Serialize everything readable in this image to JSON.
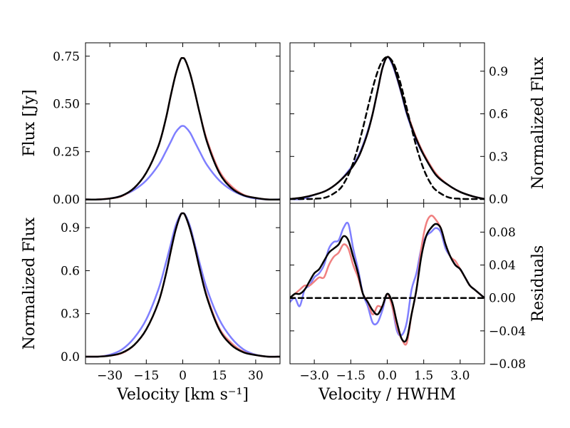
{
  "chart_data": [
    {
      "type": "line",
      "id": "top-left",
      "title": "",
      "xlabel": "",
      "ylabel": "Flux [Jy]",
      "xlim": [
        -40,
        40
      ],
      "ylim": [
        -0.02,
        0.82
      ],
      "xticks": [
        -30,
        -15,
        0,
        15,
        30
      ],
      "xtick_labels": [
        "",
        "",
        "",
        "",
        ""
      ],
      "yticks": [
        0.0,
        0.25,
        0.5,
        0.75
      ],
      "ytick_labels": [
        "0.00",
        "0.25",
        "0.50",
        "0.75"
      ],
      "ytick_side": "left",
      "series": [
        {
          "name": "blue profile",
          "color": "#7f7fff",
          "x": [
            -40,
            -35,
            -30,
            -25,
            -20,
            -15,
            -10,
            -7,
            -5,
            -3,
            -1,
            0,
            1,
            3,
            5,
            7,
            10,
            15,
            20,
            25,
            30,
            35,
            40
          ],
          "y": [
            0.0,
            0.0,
            0.005,
            0.02,
            0.05,
            0.1,
            0.18,
            0.25,
            0.3,
            0.35,
            0.38,
            0.385,
            0.38,
            0.35,
            0.3,
            0.25,
            0.18,
            0.1,
            0.05,
            0.02,
            0.005,
            0.0,
            0.0
          ]
        },
        {
          "name": "red profile",
          "color": "#f08080",
          "x": [
            -40,
            -35,
            -30,
            -25,
            -20,
            -15,
            -10,
            -7,
            -5,
            -3,
            -1,
            0,
            1,
            3,
            5,
            7,
            10,
            15,
            20,
            25,
            30,
            35,
            40
          ],
          "y": [
            0.0,
            0.0,
            0.005,
            0.018,
            0.06,
            0.14,
            0.28,
            0.42,
            0.54,
            0.65,
            0.73,
            0.74,
            0.73,
            0.66,
            0.56,
            0.45,
            0.31,
            0.15,
            0.07,
            0.025,
            0.008,
            0.0,
            0.0
          ]
        },
        {
          "name": "black profile",
          "color": "#000000",
          "x": [
            -40,
            -35,
            -30,
            -25,
            -20,
            -15,
            -10,
            -7,
            -5,
            -3,
            -1,
            0,
            1,
            3,
            5,
            7,
            10,
            15,
            20,
            25,
            30,
            35,
            40
          ],
          "y": [
            0.0,
            0.0,
            0.005,
            0.02,
            0.06,
            0.14,
            0.28,
            0.42,
            0.54,
            0.65,
            0.73,
            0.74,
            0.73,
            0.66,
            0.56,
            0.45,
            0.3,
            0.14,
            0.06,
            0.022,
            0.008,
            0.0,
            0.0
          ]
        }
      ]
    },
    {
      "type": "line",
      "id": "top-right",
      "title": "",
      "xlabel": "",
      "ylabel": "Normalized Flux",
      "xlim": [
        -4.0,
        4.0
      ],
      "ylim": [
        -0.03,
        1.1
      ],
      "xticks": [
        -3.0,
        -1.5,
        0.0,
        1.5,
        3.0
      ],
      "xtick_labels": [
        "",
        "",
        "",
        "",
        ""
      ],
      "yticks": [
        0.0,
        0.3,
        0.6,
        0.9
      ],
      "ytick_labels": [
        "0.0",
        "0.3",
        "0.6",
        "0.9"
      ],
      "ytick_side": "right",
      "series": [
        {
          "name": "blue profile",
          "color": "#7f7fff",
          "x": [
            -4,
            -3.5,
            -3,
            -2.5,
            -2,
            -1.5,
            -1.2,
            -1,
            -0.8,
            -0.6,
            -0.4,
            -0.2,
            0,
            0.2,
            0.4,
            0.6,
            0.8,
            1,
            1.2,
            1.5,
            2,
            2.5,
            3,
            3.5,
            4
          ],
          "y": [
            0.0,
            0.0,
            0.03,
            0.06,
            0.12,
            0.22,
            0.3,
            0.38,
            0.48,
            0.6,
            0.76,
            0.92,
            1.0,
            0.95,
            0.85,
            0.73,
            0.6,
            0.5,
            0.41,
            0.31,
            0.17,
            0.1,
            0.05,
            0.02,
            0.0
          ]
        },
        {
          "name": "red profile",
          "color": "#f08080",
          "x": [
            -4,
            -3.5,
            -3,
            -2.5,
            -2,
            -1.5,
            -1.2,
            -1,
            -0.8,
            -0.6,
            -0.4,
            -0.2,
            0,
            0.2,
            0.4,
            0.6,
            0.8,
            1,
            1.2,
            1.5,
            2,
            2.5,
            3,
            3.5,
            4
          ],
          "y": [
            0.0,
            0.01,
            0.03,
            0.06,
            0.12,
            0.21,
            0.29,
            0.37,
            0.47,
            0.6,
            0.76,
            0.92,
            1.0,
            0.96,
            0.86,
            0.74,
            0.62,
            0.52,
            0.43,
            0.32,
            0.18,
            0.1,
            0.05,
            0.02,
            0.0
          ]
        },
        {
          "name": "black profile",
          "color": "#000000",
          "x": [
            -4,
            -3.5,
            -3,
            -2.5,
            -2,
            -1.5,
            -1.2,
            -1,
            -0.8,
            -0.6,
            -0.4,
            -0.2,
            0,
            0.2,
            0.4,
            0.6,
            0.8,
            1,
            1.2,
            1.5,
            2,
            2.5,
            3,
            3.5,
            4
          ],
          "y": [
            0.0,
            0.01,
            0.03,
            0.06,
            0.12,
            0.21,
            0.29,
            0.37,
            0.47,
            0.6,
            0.76,
            0.92,
            1.0,
            0.96,
            0.86,
            0.74,
            0.61,
            0.51,
            0.42,
            0.31,
            0.17,
            0.1,
            0.05,
            0.02,
            0.0
          ]
        },
        {
          "name": "gaussian fit (dashed)",
          "color": "#000000",
          "dashed": true,
          "x": [
            -4,
            -3.5,
            -3,
            -2.5,
            -2,
            -1.75,
            -1.5,
            -1.25,
            -1,
            -0.75,
            -0.5,
            -0.25,
            0,
            0.25,
            0.5,
            0.75,
            1,
            1.25,
            1.5,
            1.75,
            2,
            2.5,
            3,
            3.5,
            4
          ],
          "y": [
            0.0,
            0.0,
            0.002,
            0.013,
            0.063,
            0.12,
            0.21,
            0.338,
            0.5,
            0.677,
            0.841,
            0.958,
            1.0,
            0.958,
            0.841,
            0.677,
            0.5,
            0.338,
            0.21,
            0.12,
            0.063,
            0.013,
            0.002,
            0.0,
            0.0
          ]
        }
      ]
    },
    {
      "type": "line",
      "id": "bottom-left",
      "title": "",
      "xlabel": "Velocity [km s⁻¹]",
      "ylabel": "Normalized Flux",
      "xlim": [
        -40,
        40
      ],
      "ylim": [
        -0.05,
        1.07
      ],
      "xticks": [
        -30,
        -15,
        0,
        15,
        30
      ],
      "xtick_labels": [
        "−30",
        "−15",
        "0",
        "15",
        "30"
      ],
      "yticks": [
        0.0,
        0.3,
        0.6,
        0.9
      ],
      "ytick_labels": [
        "0.0",
        "0.3",
        "0.6",
        "0.9"
      ],
      "ytick_side": "left",
      "series": [
        {
          "name": "blue profile",
          "color": "#7f7fff",
          "x": [
            -40,
            -35,
            -30,
            -25,
            -20,
            -15,
            -10,
            -7,
            -5,
            -3,
            -1,
            0,
            1,
            3,
            5,
            7,
            10,
            15,
            20,
            25,
            30,
            35,
            40
          ],
          "y": [
            0.0,
            0.0,
            0.013,
            0.05,
            0.13,
            0.26,
            0.47,
            0.65,
            0.78,
            0.91,
            0.99,
            1.0,
            0.99,
            0.91,
            0.78,
            0.65,
            0.47,
            0.26,
            0.13,
            0.05,
            0.013,
            0.0,
            0.0
          ]
        },
        {
          "name": "red profile",
          "color": "#f08080",
          "x": [
            -40,
            -35,
            -30,
            -25,
            -20,
            -15,
            -10,
            -7,
            -5,
            -3,
            -1,
            0,
            1,
            3,
            5,
            7,
            10,
            15,
            20,
            25,
            30,
            35,
            40
          ],
          "y": [
            0.0,
            0.0,
            0.007,
            0.024,
            0.08,
            0.19,
            0.38,
            0.57,
            0.73,
            0.88,
            0.985,
            1.0,
            0.985,
            0.89,
            0.76,
            0.61,
            0.42,
            0.2,
            0.095,
            0.034,
            0.011,
            0.0,
            0.0
          ]
        },
        {
          "name": "black profile",
          "color": "#000000",
          "x": [
            -40,
            -35,
            -30,
            -25,
            -20,
            -15,
            -10,
            -7,
            -5,
            -3,
            -1,
            0,
            1,
            3,
            5,
            7,
            10,
            15,
            20,
            25,
            30,
            35,
            40
          ],
          "y": [
            0.0,
            0.0,
            0.007,
            0.027,
            0.081,
            0.19,
            0.38,
            0.57,
            0.73,
            0.88,
            0.985,
            1.0,
            0.985,
            0.89,
            0.76,
            0.61,
            0.41,
            0.19,
            0.081,
            0.03,
            0.011,
            0.0,
            0.0
          ]
        }
      ]
    },
    {
      "type": "line",
      "id": "bottom-right",
      "title": "",
      "xlabel": "Velocity / HWHM",
      "ylabel": "Residuals",
      "xlim": [
        -4.0,
        4.0
      ],
      "ylim": [
        -0.08,
        0.115
      ],
      "xticks": [
        -3.0,
        -1.5,
        0.0,
        1.5,
        3.0
      ],
      "xtick_labels": [
        "−3.0",
        "−1.5",
        "0.0",
        "1.5",
        "3.0"
      ],
      "yticks": [
        -0.08,
        -0.04,
        0.0,
        0.04,
        0.08
      ],
      "ytick_labels": [
        "−0.08",
        "−0.04",
        "0.00",
        "0.04",
        "0.08"
      ],
      "ytick_side": "right",
      "series": [
        {
          "name": "blue residuals",
          "color": "#7f7fff",
          "x": [
            -4,
            -3.8,
            -3.6,
            -3.4,
            -3.2,
            -3,
            -2.8,
            -2.6,
            -2.4,
            -2.2,
            -2,
            -1.8,
            -1.6,
            -1.4,
            -1.2,
            -1,
            -0.8,
            -0.6,
            -0.4,
            -0.2,
            0,
            0.2,
            0.4,
            0.6,
            0.8,
            1,
            1.2,
            1.4,
            1.6,
            1.8,
            2,
            2.2,
            2.4,
            2.6,
            2.8,
            3,
            3.2,
            3.4,
            3.6,
            3.8,
            4
          ],
          "y": [
            -0.005,
            0.0,
            -0.01,
            0.01,
            0.015,
            0.025,
            0.03,
            0.04,
            0.06,
            0.068,
            0.07,
            0.085,
            0.09,
            0.06,
            0.035,
            0.005,
            -0.01,
            -0.03,
            -0.03,
            -0.015,
            0.005,
            -0.01,
            -0.04,
            -0.045,
            -0.03,
            0.01,
            0.03,
            0.06,
            0.075,
            0.08,
            0.085,
            0.08,
            0.06,
            0.05,
            0.04,
            0.035,
            0.025,
            0.015,
            0.01,
            0.005,
            0.0
          ]
        },
        {
          "name": "red residuals",
          "color": "#f08080",
          "x": [
            -4,
            -3.8,
            -3.6,
            -3.4,
            -3.2,
            -3,
            -2.8,
            -2.6,
            -2.4,
            -2.2,
            -2,
            -1.8,
            -1.6,
            -1.4,
            -1.2,
            -1,
            -0.8,
            -0.6,
            -0.4,
            -0.2,
            0,
            0.2,
            0.4,
            0.6,
            0.8,
            1,
            1.2,
            1.4,
            1.6,
            1.8,
            2,
            2.2,
            2.4,
            2.6,
            2.8,
            3,
            3.2,
            3.4,
            3.6,
            3.8,
            4
          ],
          "y": [
            0.0,
            0.005,
            0.01,
            0.015,
            0.015,
            0.02,
            0.025,
            0.025,
            0.04,
            0.05,
            0.055,
            0.065,
            0.06,
            0.04,
            0.025,
            0.005,
            -0.005,
            -0.02,
            -0.01,
            -0.01,
            0.005,
            -0.01,
            -0.035,
            -0.05,
            -0.055,
            -0.02,
            0.01,
            0.06,
            0.09,
            0.1,
            0.095,
            0.085,
            0.065,
            0.05,
            0.045,
            0.035,
            0.025,
            0.015,
            0.01,
            0.005,
            0.0
          ]
        },
        {
          "name": "black residuals",
          "color": "#000000",
          "x": [
            -4,
            -3.8,
            -3.6,
            -3.4,
            -3.2,
            -3,
            -2.8,
            -2.6,
            -2.4,
            -2.2,
            -2,
            -1.8,
            -1.6,
            -1.4,
            -1.2,
            -1,
            -0.8,
            -0.6,
            -0.4,
            -0.2,
            0,
            0.2,
            0.4,
            0.6,
            0.8,
            1,
            1.2,
            1.4,
            1.6,
            1.8,
            2,
            2.2,
            2.4,
            2.6,
            2.8,
            3,
            3.2,
            3.4,
            3.6,
            3.8,
            4
          ],
          "y": [
            0.0,
            0.005,
            0.005,
            0.01,
            0.02,
            0.03,
            0.035,
            0.045,
            0.055,
            0.06,
            0.065,
            0.075,
            0.07,
            0.05,
            0.03,
            0.005,
            -0.005,
            -0.015,
            -0.02,
            -0.01,
            0.005,
            -0.005,
            -0.03,
            -0.05,
            -0.05,
            -0.02,
            0.01,
            0.05,
            0.075,
            0.085,
            0.09,
            0.085,
            0.065,
            0.05,
            0.04,
            0.035,
            0.025,
            0.015,
            0.01,
            0.005,
            0.0
          ]
        },
        {
          "name": "zero line (dashed)",
          "color": "#000000",
          "dashed": true,
          "x": [
            -4,
            4
          ],
          "y": [
            0.0,
            0.0
          ]
        }
      ]
    }
  ]
}
